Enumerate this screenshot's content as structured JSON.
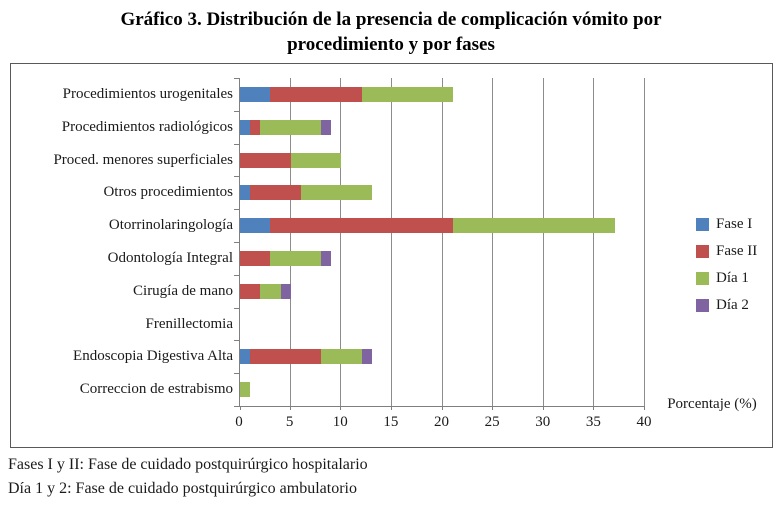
{
  "title": {
    "line1": "Gráfico 3. Distribución de la presencia de complicación vómito por",
    "line2": "procedimiento y por fases"
  },
  "footnotes": [
    "Fases I y II: Fase de cuidado postquirúrgico hospitalario",
    "Día 1 y 2: Fase de cuidado postquirúrgico ambulatorio"
  ],
  "chart_data": {
    "type": "bar",
    "orientation": "horizontal",
    "stacked": true,
    "title": "Gráfico 3. Distribución de la presencia de complicación vómito por procedimiento y por fases",
    "categories": [
      "Procedimientos urogenitales",
      "Procedimientos radiológicos",
      "Proced. menores superficiales",
      "Otros procedimientos",
      "Otorrinolaringología",
      "Odontología Integral",
      "Cirugía de mano",
      "Frenillectomia",
      "Endoscopia Digestiva Alta",
      "Correccion de estrabismo"
    ],
    "series": [
      {
        "name": "Fase I",
        "color": "#4F81BD",
        "values": [
          3,
          1,
          0,
          1,
          3,
          0,
          0,
          0,
          1,
          0
        ]
      },
      {
        "name": "Fase II",
        "color": "#C0504D",
        "values": [
          9,
          1,
          5,
          5,
          18,
          3,
          2,
          0,
          7,
          0
        ]
      },
      {
        "name": "Día 1",
        "color": "#9BBB59",
        "values": [
          9,
          6,
          5,
          7,
          16,
          5,
          2,
          0,
          4,
          1
        ]
      },
      {
        "name": "Día 2",
        "color": "#8064A2",
        "values": [
          0,
          1,
          0,
          0,
          0,
          1,
          1,
          0,
          1,
          0
        ]
      }
    ],
    "xlabel": "Porcentaje (%)",
    "ylabel": "",
    "xlim": [
      0,
      40
    ],
    "xticks": [
      0,
      5,
      10,
      15,
      20,
      25,
      30,
      35,
      40
    ],
    "grid": true,
    "legend_position": "right"
  }
}
